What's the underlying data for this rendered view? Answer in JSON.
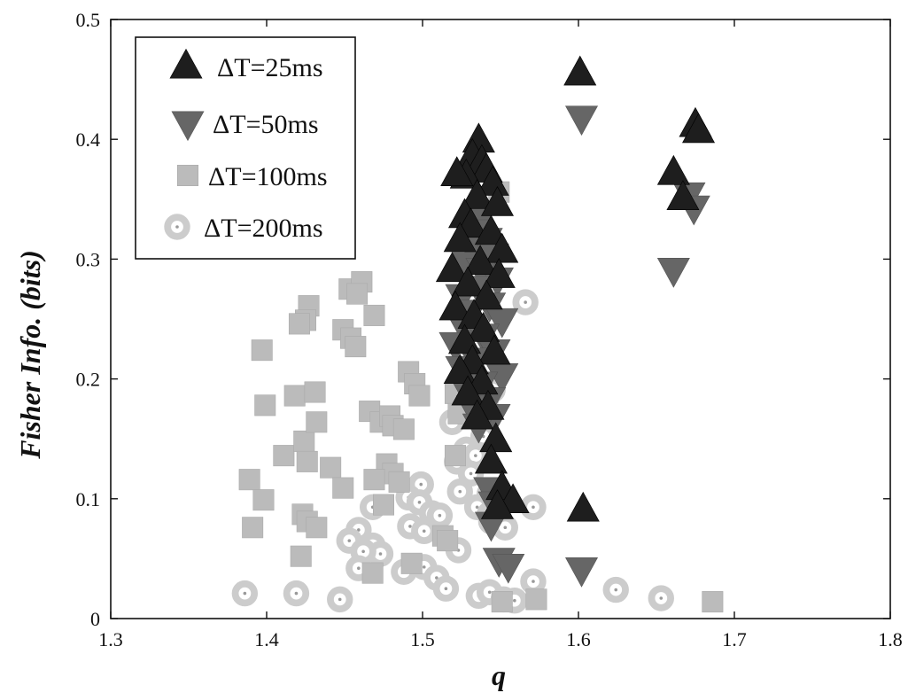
{
  "chart_data": {
    "type": "scatter",
    "xlabel": "q",
    "ylabel": "Fisher Info. (bits)",
    "xlim": [
      1.3,
      1.8
    ],
    "ylim": [
      0,
      0.5
    ],
    "xticks": [
      "1.3",
      "1.4",
      "1.5",
      "1.6",
      "1.7",
      "1.8"
    ],
    "yticks": [
      "0",
      "0.1",
      "0.2",
      "0.3",
      "0.4",
      "0.5"
    ],
    "grid": false,
    "legend_position": "top-left",
    "series": [
      {
        "name": "ΔT=25ms",
        "marker": "triangle-up",
        "color": "#1e1e1e",
        "points": [
          [
            1.536,
            0.399
          ],
          [
            1.532,
            0.386
          ],
          [
            1.538,
            0.381
          ],
          [
            1.541,
            0.374
          ],
          [
            1.528,
            0.369
          ],
          [
            1.545,
            0.363
          ],
          [
            1.522,
            0.371
          ],
          [
            1.535,
            0.352
          ],
          [
            1.548,
            0.346
          ],
          [
            1.527,
            0.336
          ],
          [
            1.531,
            0.328
          ],
          [
            1.544,
            0.322
          ],
          [
            1.524,
            0.316
          ],
          [
            1.551,
            0.307
          ],
          [
            1.519,
            0.291
          ],
          [
            1.537,
            0.297
          ],
          [
            1.549,
            0.286
          ],
          [
            1.529,
            0.279
          ],
          [
            1.541,
            0.268
          ],
          [
            1.521,
            0.259
          ],
          [
            1.533,
            0.252
          ],
          [
            1.539,
            0.241
          ],
          [
            1.527,
            0.231
          ],
          [
            1.546,
            0.222
          ],
          [
            1.532,
            0.214
          ],
          [
            1.524,
            0.206
          ],
          [
            1.538,
            0.197
          ],
          [
            1.529,
            0.188
          ],
          [
            1.542,
            0.176
          ],
          [
            1.535,
            0.168
          ],
          [
            1.547,
            0.149
          ],
          [
            1.544,
            0.131
          ],
          [
            1.551,
            0.109
          ],
          [
            1.558,
            0.098
          ],
          [
            1.548,
            0.093
          ],
          [
            1.601,
            0.455
          ],
          [
            1.603,
            0.091
          ],
          [
            1.675,
            0.412
          ],
          [
            1.677,
            0.407
          ],
          [
            1.661,
            0.372
          ],
          [
            1.667,
            0.351
          ]
        ]
      },
      {
        "name": "ΔT=50ms",
        "marker": "triangle-down",
        "color": "#666666",
        "points": [
          [
            1.538,
            0.336
          ],
          [
            1.535,
            0.323
          ],
          [
            1.541,
            0.316
          ],
          [
            1.532,
            0.309
          ],
          [
            1.545,
            0.303
          ],
          [
            1.529,
            0.296
          ],
          [
            1.538,
            0.291
          ],
          [
            1.548,
            0.283
          ],
          [
            1.536,
            0.276
          ],
          [
            1.525,
            0.269
          ],
          [
            1.543,
            0.262
          ],
          [
            1.531,
            0.256
          ],
          [
            1.551,
            0.249
          ],
          [
            1.527,
            0.242
          ],
          [
            1.539,
            0.236
          ],
          [
            1.521,
            0.229
          ],
          [
            1.546,
            0.223
          ],
          [
            1.534,
            0.216
          ],
          [
            1.525,
            0.209
          ],
          [
            1.551,
            0.203
          ],
          [
            1.538,
            0.196
          ],
          [
            1.529,
            0.189
          ],
          [
            1.543,
            0.183
          ],
          [
            1.532,
            0.176
          ],
          [
            1.546,
            0.169
          ],
          [
            1.536,
            0.161
          ],
          [
            1.543,
            0.108
          ],
          [
            1.546,
            0.096
          ],
          [
            1.544,
            0.079
          ],
          [
            1.549,
            0.049
          ],
          [
            1.555,
            0.044
          ],
          [
            1.602,
            0.418
          ],
          [
            1.602,
            0.041
          ],
          [
            1.671,
            0.354
          ],
          [
            1.674,
            0.343
          ],
          [
            1.661,
            0.291
          ]
        ]
      },
      {
        "name": "ΔT=100ms",
        "marker": "square",
        "color": "#bbbbbb",
        "points": [
          [
            1.397,
            0.224
          ],
          [
            1.427,
            0.261
          ],
          [
            1.425,
            0.249
          ],
          [
            1.421,
            0.246
          ],
          [
            1.453,
            0.275
          ],
          [
            1.461,
            0.281
          ],
          [
            1.458,
            0.271
          ],
          [
            1.469,
            0.253
          ],
          [
            1.449,
            0.241
          ],
          [
            1.454,
            0.234
          ],
          [
            1.457,
            0.227
          ],
          [
            1.399,
            0.178
          ],
          [
            1.418,
            0.186
          ],
          [
            1.431,
            0.189
          ],
          [
            1.411,
            0.136
          ],
          [
            1.424,
            0.148
          ],
          [
            1.432,
            0.164
          ],
          [
            1.441,
            0.126
          ],
          [
            1.426,
            0.131
          ],
          [
            1.389,
            0.116
          ],
          [
            1.398,
            0.099
          ],
          [
            1.391,
            0.076
          ],
          [
            1.423,
            0.087
          ],
          [
            1.426,
            0.081
          ],
          [
            1.432,
            0.076
          ],
          [
            1.449,
            0.109
          ],
          [
            1.422,
            0.052
          ],
          [
            1.466,
            0.173
          ],
          [
            1.473,
            0.164
          ],
          [
            1.479,
            0.169
          ],
          [
            1.481,
            0.161
          ],
          [
            1.488,
            0.158
          ],
          [
            1.491,
            0.206
          ],
          [
            1.495,
            0.196
          ],
          [
            1.498,
            0.186
          ],
          [
            1.477,
            0.129
          ],
          [
            1.481,
            0.121
          ],
          [
            1.469,
            0.116
          ],
          [
            1.485,
            0.114
          ],
          [
            1.475,
            0.095
          ],
          [
            1.468,
            0.038
          ],
          [
            1.493,
            0.046
          ],
          [
            1.513,
            0.069
          ],
          [
            1.516,
            0.065
          ],
          [
            1.521,
            0.188
          ],
          [
            1.523,
            0.171
          ],
          [
            1.521,
            0.136
          ],
          [
            1.549,
            0.356
          ],
          [
            1.573,
            0.016
          ],
          [
            1.686,
            0.014
          ],
          [
            1.551,
            0.014
          ]
        ]
      },
      {
        "name": "ΔT=200ms",
        "marker": "circle",
        "color": "#cccccc",
        "points": [
          [
            1.566,
            0.264
          ],
          [
            1.545,
            0.191
          ],
          [
            1.541,
            0.184
          ],
          [
            1.536,
            0.181
          ],
          [
            1.519,
            0.164
          ],
          [
            1.526,
            0.172
          ],
          [
            1.539,
            0.152
          ],
          [
            1.528,
            0.141
          ],
          [
            1.534,
            0.136
          ],
          [
            1.522,
            0.131
          ],
          [
            1.531,
            0.121
          ],
          [
            1.524,
            0.106
          ],
          [
            1.543,
            0.104
          ],
          [
            1.535,
            0.093
          ],
          [
            1.543,
            0.087
          ],
          [
            1.544,
            0.081
          ],
          [
            1.553,
            0.076
          ],
          [
            1.571,
            0.093
          ],
          [
            1.499,
            0.112
          ],
          [
            1.491,
            0.101
          ],
          [
            1.498,
            0.097
          ],
          [
            1.506,
            0.088
          ],
          [
            1.511,
            0.086
          ],
          [
            1.492,
            0.077
          ],
          [
            1.501,
            0.073
          ],
          [
            1.468,
            0.093
          ],
          [
            1.459,
            0.074
          ],
          [
            1.453,
            0.065
          ],
          [
            1.468,
            0.061
          ],
          [
            1.473,
            0.054
          ],
          [
            1.462,
            0.056
          ],
          [
            1.459,
            0.042
          ],
          [
            1.488,
            0.039
          ],
          [
            1.501,
            0.043
          ],
          [
            1.509,
            0.034
          ],
          [
            1.515,
            0.025
          ],
          [
            1.523,
            0.057
          ],
          [
            1.536,
            0.019
          ],
          [
            1.543,
            0.022
          ],
          [
            1.552,
            0.016
          ],
          [
            1.559,
            0.015
          ],
          [
            1.571,
            0.031
          ],
          [
            1.624,
            0.024
          ],
          [
            1.653,
            0.017
          ],
          [
            1.386,
            0.021
          ],
          [
            1.419,
            0.021
          ],
          [
            1.447,
            0.016
          ]
        ]
      }
    ]
  }
}
